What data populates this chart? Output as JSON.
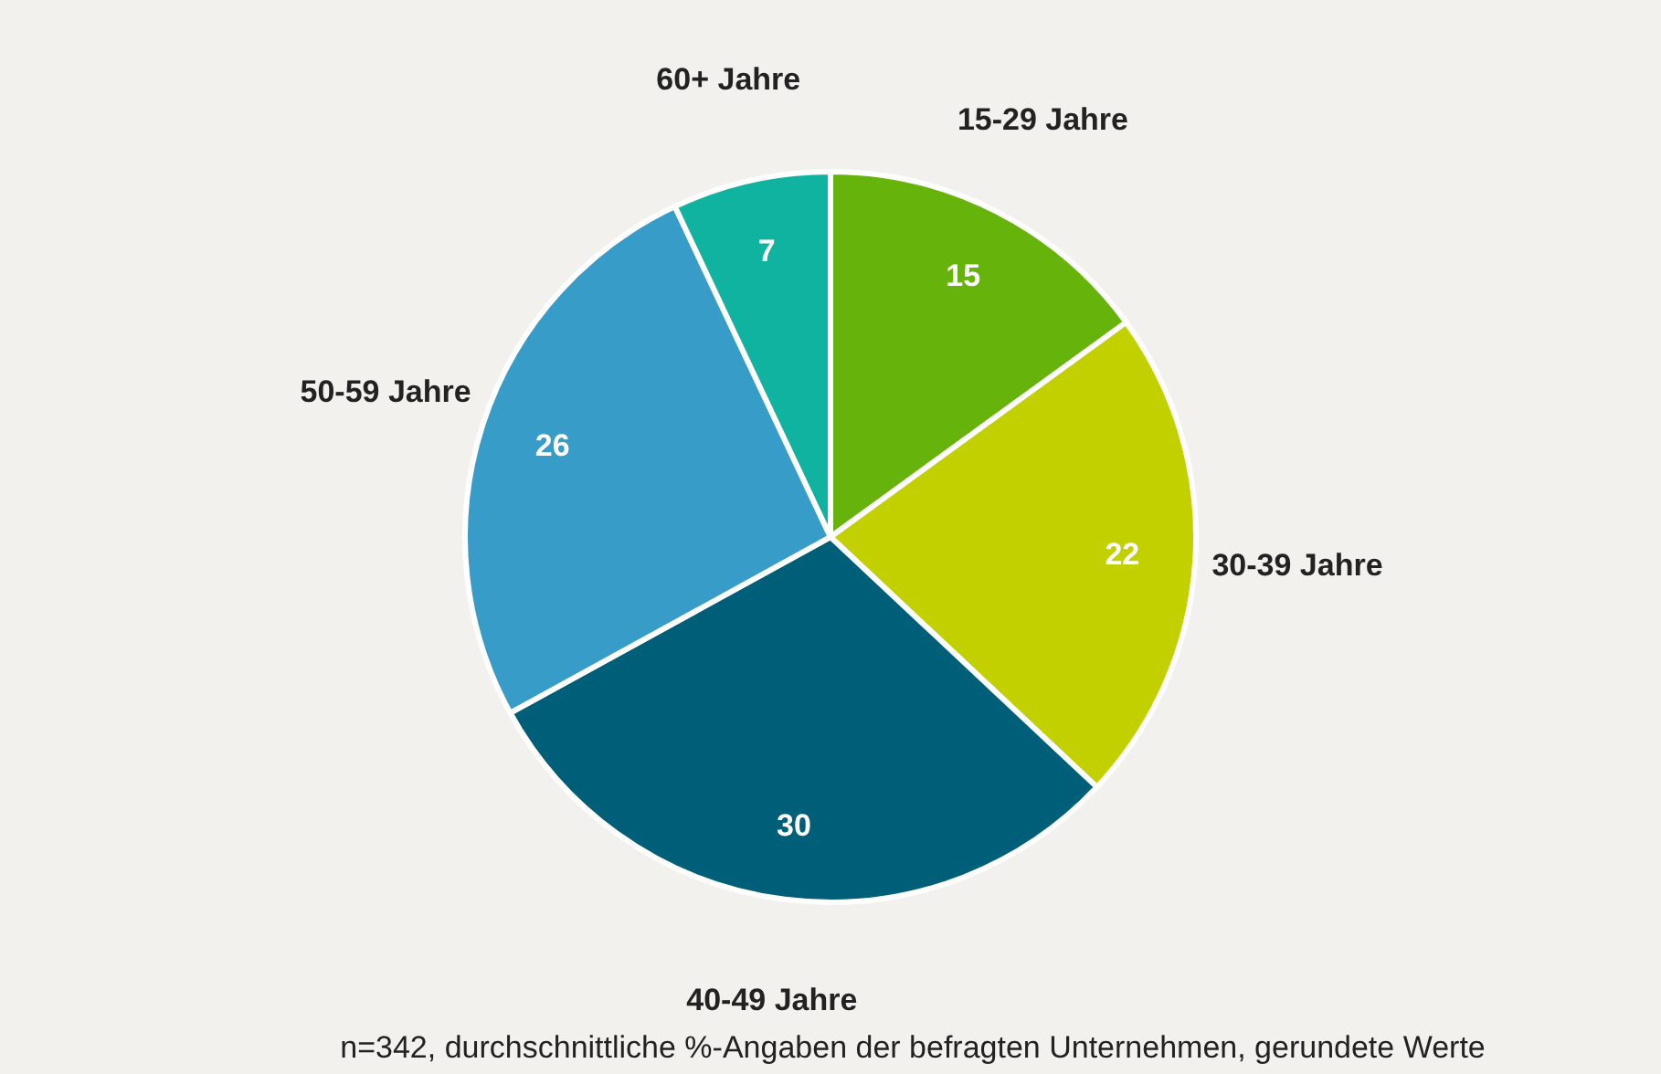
{
  "chart_data": {
    "type": "pie",
    "categories": [
      "15-29 Jahre",
      "30-39 Jahre",
      "40-49 Jahre",
      "50-59 Jahre",
      "60+ Jahre"
    ],
    "values": [
      15,
      22,
      30,
      26,
      7
    ],
    "colors": [
      "#66b30c",
      "#c2d000",
      "#005f78",
      "#389cc8",
      "#10b3a0"
    ],
    "data_labels": true,
    "annotations": [
      "n=342, durchschnittliche %-Angaben der befragten Unternehmen, gerundete Werte"
    ]
  }
}
